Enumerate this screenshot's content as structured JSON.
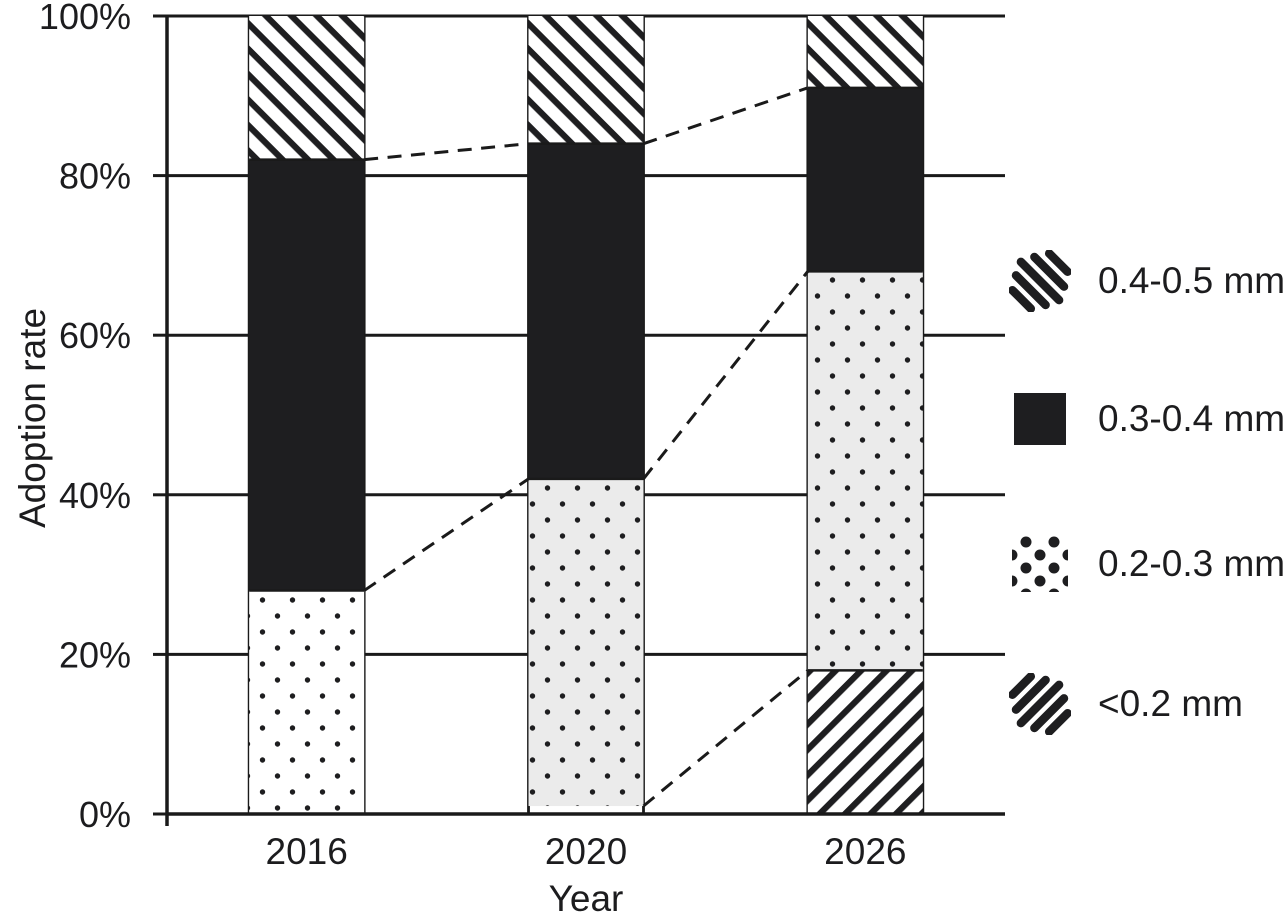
{
  "chart_data": {
    "type": "bar",
    "variant": "stacked-100-percent",
    "title": "",
    "xlabel": "Year",
    "ylabel": "Adoption rate",
    "categories": [
      "2016",
      "2020",
      "2026"
    ],
    "series": [
      {
        "name": "<0.2 mm",
        "pattern": "hatch-forward",
        "values": [
          0,
          1,
          18
        ]
      },
      {
        "name": "0.2-0.3 mm",
        "pattern": "dots",
        "values": [
          28,
          41,
          50
        ]
      },
      {
        "name": "0.3-0.4 mm",
        "pattern": "solid",
        "values": [
          54,
          42,
          23
        ]
      },
      {
        "name": "0.4-0.5 mm",
        "pattern": "hatch-backward",
        "values": [
          18,
          16,
          9
        ]
      }
    ],
    "stack_order": "bottom-to-top",
    "ylim": [
      0,
      100
    ],
    "yticks": [
      {
        "value": 0,
        "label": "0%"
      },
      {
        "value": 20,
        "label": "20%"
      },
      {
        "value": 40,
        "label": "40%"
      },
      {
        "value": 60,
        "label": "60%"
      },
      {
        "value": 80,
        "label": "80%"
      },
      {
        "value": 100,
        "label": "100%"
      }
    ],
    "grid": "horizontal",
    "connectors": "dashed lines linking stack boundaries between adjacent bars",
    "legend_position": "right-outside",
    "legend_order_top_to_bottom": [
      "0.4-0.5 mm",
      "0.3-0.4 mm",
      "0.2-0.3 mm",
      "<0.2 mm"
    ]
  },
  "style": {
    "ink": "#1e1e20",
    "line": "#1a1a1a",
    "text": "#1c1c1e",
    "hatch_background": "#ffffff",
    "swatch_background": "#ffffff",
    "dots_background_by_bar": [
      "#ffffff",
      "#ebebeb",
      "#ebebeb"
    ]
  }
}
